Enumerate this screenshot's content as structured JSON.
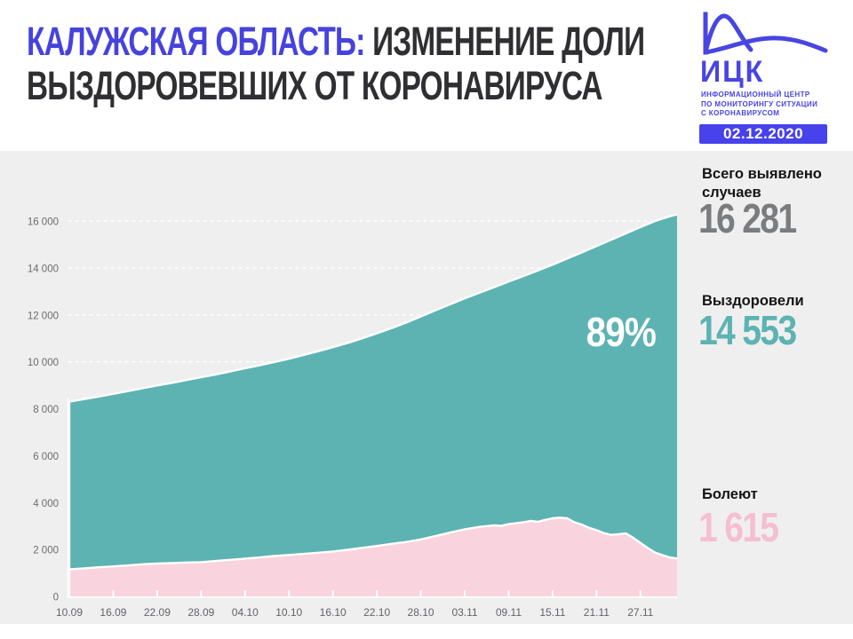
{
  "header": {
    "title_highlight": "КАЛУЖСКАЯ ОБЛАСТЬ:",
    "title_line1_rest": "ИЗМЕНЕНИЕ ДОЛИ",
    "title_line2": "ВЫЗДОРОВЕВШИХ ОТ КОРОНАВИРУСА",
    "accent_color": "#4643dd"
  },
  "logo": {
    "abbr": "ИЦК",
    "caption_lines": [
      "ИНФОРМАЦИОННЫЙ ЦЕНТР",
      "ПО МОНИТОРИНГУ СИТУАЦИИ",
      "С КОРОНАВИРУСОМ"
    ],
    "date_badge": "02.12.2020",
    "color": "#4845e2",
    "badge_color": "#4742ec"
  },
  "stats": [
    {
      "id": "total",
      "label_lines": [
        "Всего выявлено",
        "случаев"
      ],
      "value": "16 281",
      "color": "#7b7c7e"
    },
    {
      "id": "recovered",
      "label_lines": [
        "Выздоровели",
        ""
      ],
      "value": "14 553",
      "color": "#5cb3b2"
    },
    {
      "id": "active",
      "label_lines": [
        "Болеют",
        ""
      ],
      "value": "1 615",
      "color": "#f5bfd0"
    }
  ],
  "colors": {
    "panel_background": "#efeff0",
    "grid_line": "#ffffff",
    "axis_text": "#6b6c6e"
  },
  "chart_data": {
    "type": "area",
    "title": "Изменение доли выздоровевших от коронавируса — Калужская область",
    "x_unit": "дни с 10.09.2020 по 02.12.2020",
    "x_tick_labels": [
      "10.09",
      "16.09",
      "22.09",
      "28.09",
      "04.10",
      "10.10",
      "16.10",
      "22.10",
      "28.10",
      "03.11",
      "09.11",
      "15.11",
      "21.11",
      "27.11"
    ],
    "x_tick_days": [
      0,
      6,
      12,
      18,
      24,
      30,
      36,
      42,
      48,
      54,
      60,
      66,
      72,
      78
    ],
    "y_ticks": [
      0,
      2000,
      4000,
      6000,
      8000,
      10000,
      12000,
      14000,
      16000
    ],
    "y_tick_labels": [
      "0",
      "2 000",
      "4 000",
      "6 000",
      "8 000",
      "10 000",
      "12 000",
      "14 000",
      "16 000"
    ],
    "ylim": [
      0,
      16281
    ],
    "grid": "horizontal white dashed",
    "legend": "none",
    "annotation": {
      "text": "89%",
      "meaning": "доля выздоровевших от числа выявленных"
    },
    "series": [
      {
        "name": "Всего выявлено случаев (накопленный итог)",
        "key": "total",
        "color": "#5cb3b2",
        "final_value": 16281,
        "points": [
          [
            0,
            8300
          ],
          [
            2,
            8410
          ],
          [
            4,
            8520
          ],
          [
            6,
            8630
          ],
          [
            8,
            8750
          ],
          [
            10,
            8870
          ],
          [
            12,
            8990
          ],
          [
            14,
            9100
          ],
          [
            16,
            9220
          ],
          [
            18,
            9340
          ],
          [
            20,
            9460
          ],
          [
            22,
            9590
          ],
          [
            24,
            9720
          ],
          [
            26,
            9850
          ],
          [
            28,
            9990
          ],
          [
            30,
            10130
          ],
          [
            32,
            10290
          ],
          [
            34,
            10450
          ],
          [
            36,
            10620
          ],
          [
            38,
            10800
          ],
          [
            40,
            11000
          ],
          [
            42,
            11210
          ],
          [
            44,
            11430
          ],
          [
            46,
            11670
          ],
          [
            48,
            11930
          ],
          [
            50,
            12190
          ],
          [
            52,
            12450
          ],
          [
            54,
            12700
          ],
          [
            56,
            12940
          ],
          [
            58,
            13180
          ],
          [
            60,
            13420
          ],
          [
            62,
            13650
          ],
          [
            64,
            13890
          ],
          [
            66,
            14140
          ],
          [
            68,
            14400
          ],
          [
            70,
            14660
          ],
          [
            72,
            14930
          ],
          [
            74,
            15200
          ],
          [
            76,
            15470
          ],
          [
            78,
            15740
          ],
          [
            80,
            16000
          ],
          [
            82,
            16200
          ],
          [
            83,
            16281
          ]
        ]
      },
      {
        "name": "Болеют (активные случаи)",
        "key": "active",
        "color": "#f9d3de",
        "final_value": 1615,
        "points": [
          [
            0,
            1150
          ],
          [
            2,
            1195
          ],
          [
            4,
            1240
          ],
          [
            6,
            1280
          ],
          [
            8,
            1320
          ],
          [
            10,
            1370
          ],
          [
            12,
            1400
          ],
          [
            14,
            1420
          ],
          [
            16,
            1445
          ],
          [
            18,
            1460
          ],
          [
            20,
            1510
          ],
          [
            22,
            1560
          ],
          [
            24,
            1610
          ],
          [
            26,
            1660
          ],
          [
            28,
            1720
          ],
          [
            30,
            1765
          ],
          [
            32,
            1810
          ],
          [
            34,
            1860
          ],
          [
            36,
            1915
          ],
          [
            38,
            1985
          ],
          [
            40,
            2070
          ],
          [
            42,
            2150
          ],
          [
            44,
            2240
          ],
          [
            46,
            2320
          ],
          [
            48,
            2430
          ],
          [
            50,
            2570
          ],
          [
            52,
            2720
          ],
          [
            54,
            2860
          ],
          [
            56,
            2960
          ],
          [
            58,
            3030
          ],
          [
            59,
            3010
          ],
          [
            60,
            3080
          ],
          [
            62,
            3160
          ],
          [
            63,
            3220
          ],
          [
            64,
            3180
          ],
          [
            65,
            3260
          ],
          [
            66,
            3330
          ],
          [
            67,
            3360
          ],
          [
            68,
            3330
          ],
          [
            69,
            3160
          ],
          [
            70,
            3060
          ],
          [
            71,
            2920
          ],
          [
            72,
            2820
          ],
          [
            73,
            2700
          ],
          [
            74,
            2620
          ],
          [
            75,
            2650
          ],
          [
            76,
            2690
          ],
          [
            77,
            2500
          ],
          [
            78,
            2280
          ],
          [
            79,
            2060
          ],
          [
            80,
            1870
          ],
          [
            81,
            1760
          ],
          [
            82,
            1660
          ],
          [
            83,
            1615
          ]
        ]
      }
    ]
  }
}
